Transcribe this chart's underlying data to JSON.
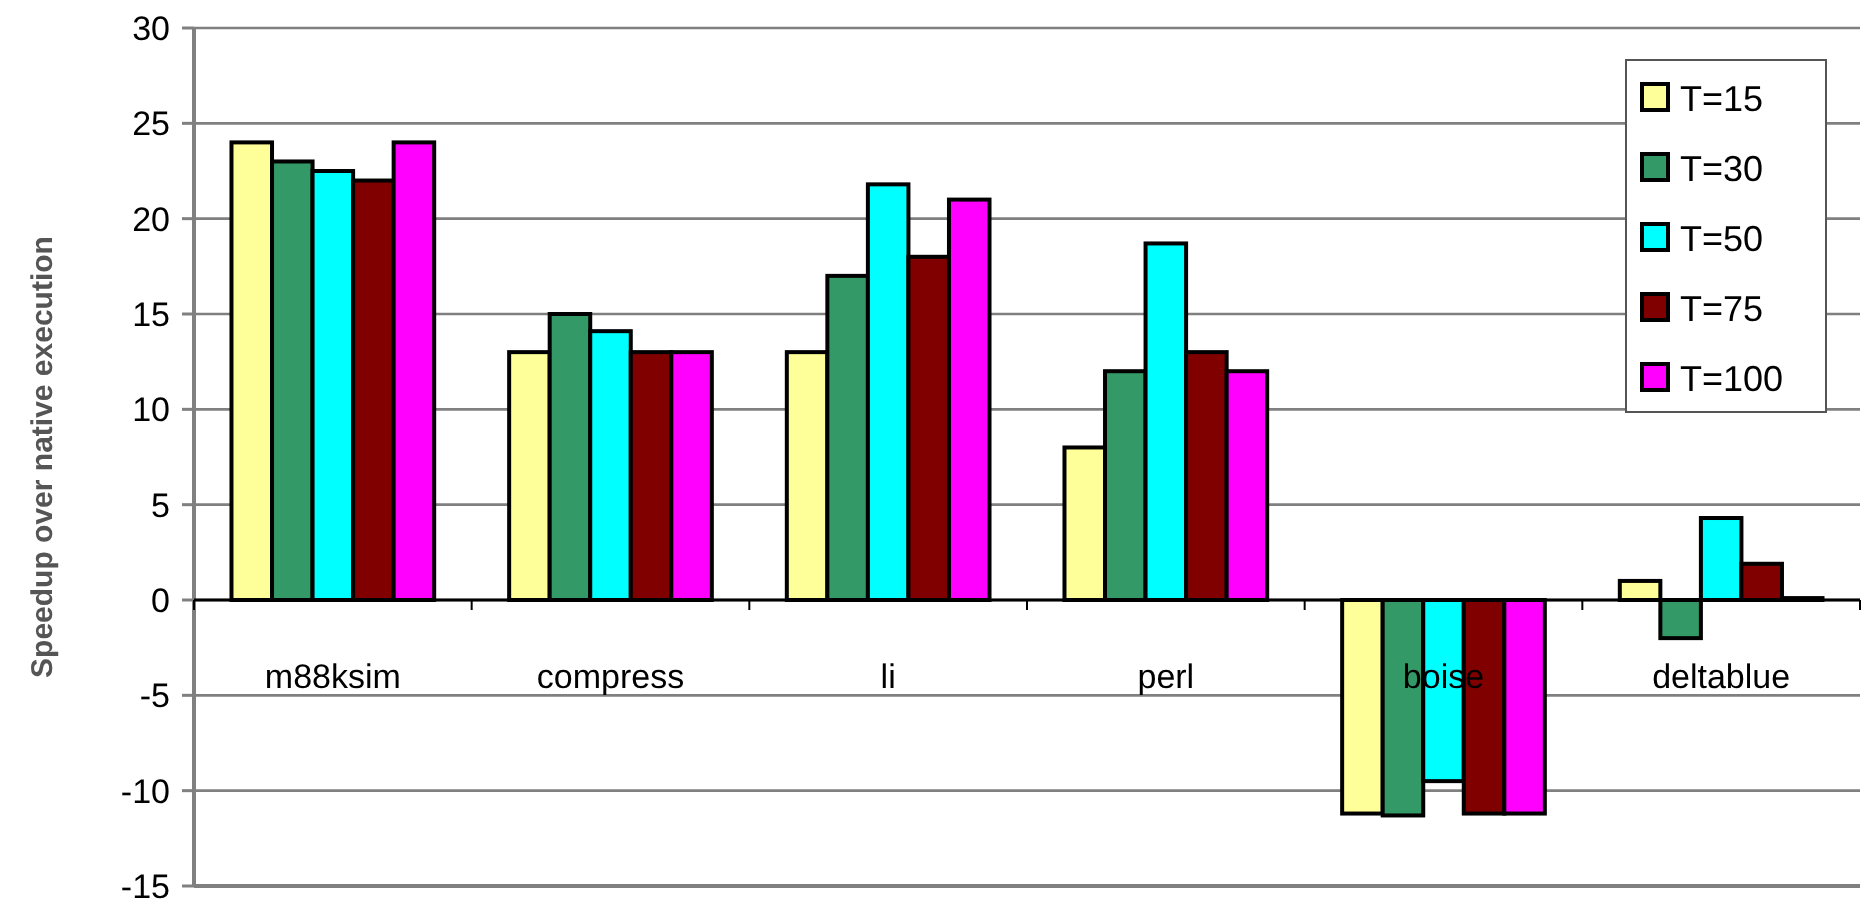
{
  "chart_data": {
    "type": "bar",
    "ylabel": "Speedup over native execution",
    "categories": [
      "m88ksim",
      "compress",
      "li",
      "perl",
      "boise",
      "deltablue"
    ],
    "series": [
      {
        "name": "T=15",
        "color": "#ffff99",
        "values": [
          24,
          13,
          13,
          8,
          -11.2,
          1
        ]
      },
      {
        "name": "T=30",
        "color": "#339966",
        "values": [
          23,
          15,
          17,
          12,
          -11.3,
          -2
        ]
      },
      {
        "name": "T=50",
        "color": "#00ffff",
        "values": [
          22.5,
          14.1,
          21.8,
          18.7,
          -9.5,
          4.3
        ]
      },
      {
        "name": "T=75",
        "color": "#800000",
        "values": [
          22,
          13,
          18,
          13,
          -11.2,
          1.9
        ]
      },
      {
        "name": "T=100",
        "color": "#ff00ff",
        "values": [
          24,
          13,
          21,
          12,
          -11.2,
          0.1
        ]
      }
    ],
    "ylim": [
      -15,
      30
    ],
    "yticks": [
      -15,
      -10,
      -5,
      0,
      5,
      10,
      15,
      20,
      25,
      30
    ],
    "grid": "y",
    "legend": "top right"
  }
}
